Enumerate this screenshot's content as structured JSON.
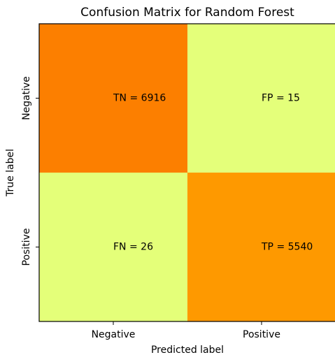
{
  "chart_data": {
    "type": "heatmap",
    "title": "Confusion Matrix for Random Forest",
    "x_label": "Predicted label",
    "y_label": "True label",
    "x_categories": [
      "Negative",
      "Positive"
    ],
    "y_categories": [
      "Negative",
      "Positive"
    ],
    "values": [
      [
        6916,
        15
      ],
      [
        26,
        5540
      ]
    ],
    "value_labels": [
      [
        "TN = 6916",
        "FP = 15"
      ],
      [
        "FN = 26",
        "TP = 5540"
      ]
    ],
    "colormap": [
      "#e4ff7a",
      "#ffe81a",
      "#ffbd00",
      "#ffa000",
      "#fc7f00"
    ]
  }
}
